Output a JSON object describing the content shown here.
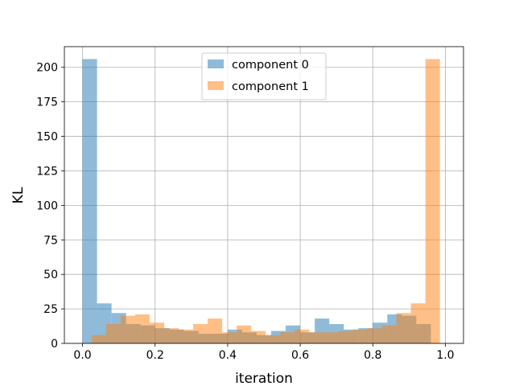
{
  "chart_data": {
    "type": "bar",
    "subtype": "overlapping-histogram",
    "xlabel": "iteration",
    "ylabel": "KL",
    "xlim": [
      -0.05,
      1.05
    ],
    "ylim": [
      0,
      215
    ],
    "xticks": [
      0.0,
      0.2,
      0.4,
      0.6,
      0.8,
      1.0
    ],
    "xtick_labels": [
      "0.0",
      "0.2",
      "0.4",
      "0.6",
      "0.8",
      "1.0"
    ],
    "yticks": [
      0,
      25,
      50,
      75,
      100,
      125,
      150,
      175,
      200
    ],
    "ytick_labels": [
      "0",
      "25",
      "50",
      "75",
      "100",
      "125",
      "150",
      "175",
      "200"
    ],
    "grid": true,
    "legend_position": "top-center",
    "series": [
      {
        "name": "component 0",
        "color": "#1f77b4",
        "bin_edges": [
          0.0,
          0.04,
          0.08,
          0.12,
          0.16,
          0.2,
          0.24,
          0.28,
          0.32,
          0.36,
          0.4,
          0.44,
          0.48,
          0.52,
          0.56,
          0.6,
          0.64,
          0.68,
          0.72,
          0.76,
          0.8,
          0.84,
          0.88,
          0.92,
          0.96
        ],
        "counts": [
          206,
          29,
          22,
          14,
          13,
          11,
          10,
          9,
          7,
          7,
          10,
          8,
          6,
          9,
          13,
          8,
          18,
          14,
          10,
          11,
          15,
          21,
          20,
          14
        ]
      },
      {
        "name": "component 1",
        "color": "#ff7f0e",
        "bin_edges": [
          0.025,
          0.065,
          0.105,
          0.145,
          0.185,
          0.225,
          0.265,
          0.305,
          0.345,
          0.385,
          0.425,
          0.465,
          0.505,
          0.545,
          0.585,
          0.625,
          0.665,
          0.705,
          0.745,
          0.785,
          0.825,
          0.865,
          0.905,
          0.945,
          0.985
        ],
        "counts": [
          6,
          14,
          20,
          21,
          15,
          11,
          10,
          14,
          18,
          8,
          13,
          9,
          6,
          8,
          10,
          8,
          8,
          9,
          10,
          11,
          13,
          22,
          29,
          206
        ]
      }
    ]
  }
}
